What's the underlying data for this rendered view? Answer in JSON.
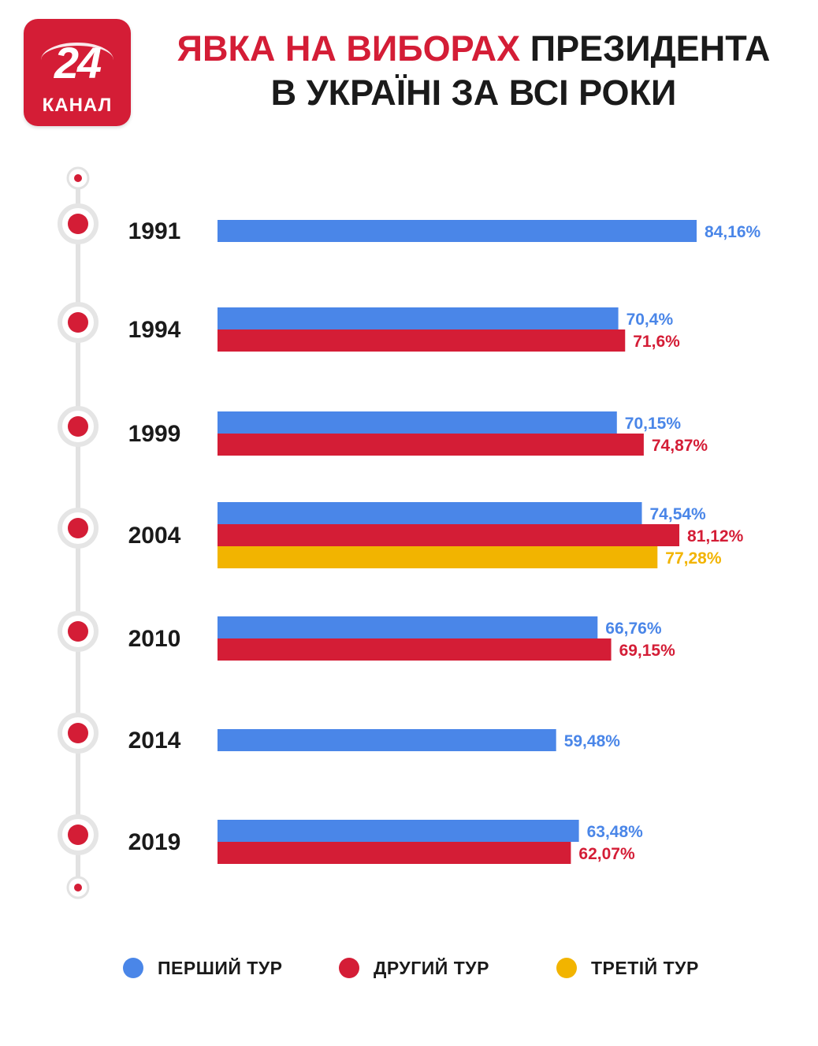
{
  "logo": {
    "number": "24",
    "word": "КАНАЛ"
  },
  "title": {
    "highlight": "ЯВКА НА ВИБОРАХ",
    "rest_line1": "ПРЕЗИДЕНТА",
    "line2": "В УКРАЇНІ ЗА ВСІ РОКИ"
  },
  "colors": {
    "brand": "#d41d36",
    "round1": "#4a86e8",
    "round2": "#d41d36",
    "round3": "#f2b400"
  },
  "chart_data": {
    "type": "bar",
    "orientation": "horizontal",
    "title": "ЯВКА НА ВИБОРАХ ПРЕЗИДЕНТА В УКРАЇНІ ЗА ВСІ РОКИ",
    "categories": [
      "1991",
      "1994",
      "1999",
      "2004",
      "2010",
      "2014",
      "2019"
    ],
    "series": [
      {
        "name": "ПЕРШИЙ ТУР",
        "color": "#4a86e8",
        "values": [
          84.16,
          70.4,
          70.15,
          74.54,
          66.76,
          59.48,
          63.48
        ],
        "labels": [
          "84,16%",
          "70,4%",
          "70,15%",
          "74,54%",
          "66,76%",
          "59,48%",
          "63,48%"
        ]
      },
      {
        "name": "ДРУГИЙ ТУР",
        "color": "#d41d36",
        "values": [
          null,
          71.6,
          74.87,
          81.12,
          69.15,
          null,
          62.07
        ],
        "labels": [
          null,
          "71,6%",
          "74,87%",
          "81,12%",
          "69,15%",
          null,
          "62,07%"
        ]
      },
      {
        "name": "ТРЕТІЙ ТУР",
        "color": "#f2b400",
        "values": [
          null,
          null,
          null,
          77.28,
          null,
          null,
          null
        ],
        "labels": [
          null,
          null,
          null,
          "77,28%",
          null,
          null,
          null
        ]
      }
    ],
    "xlim": [
      0,
      100
    ],
    "legend": "bottom"
  }
}
